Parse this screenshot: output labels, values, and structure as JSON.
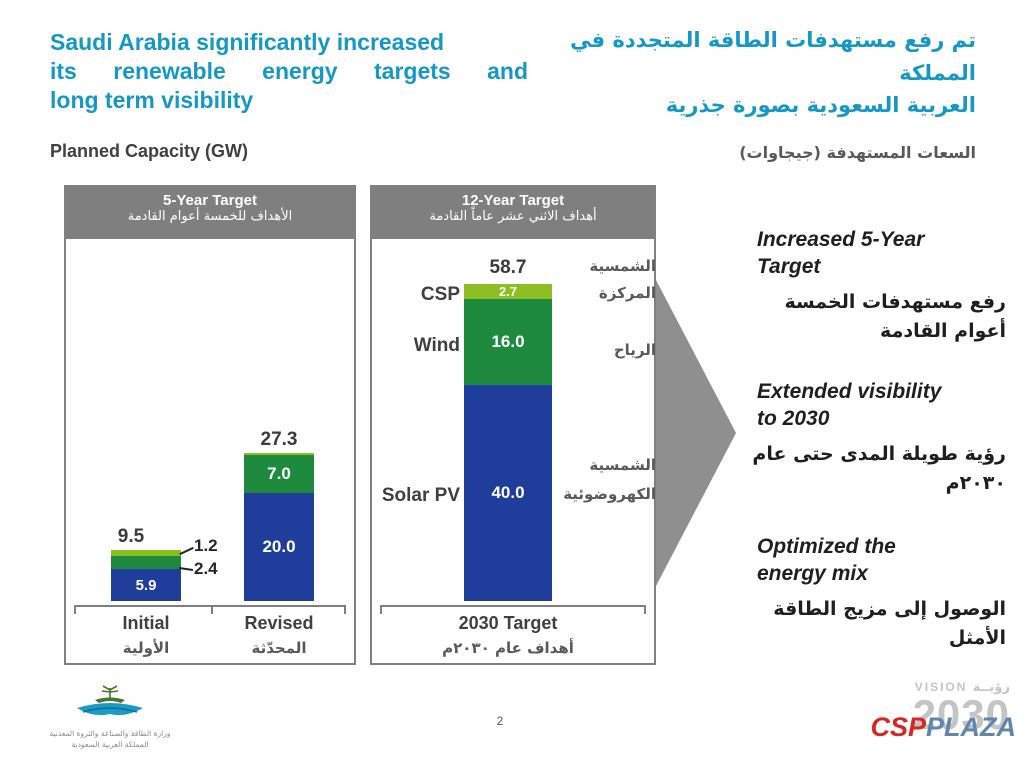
{
  "slide": {
    "title_en_lines": [
      "Saudi Arabia significantly increased",
      "its renewable energy targets and",
      "long term visibility"
    ],
    "title_ar_lines": [
      "تم رفع مستهدفات الطاقة المتجددة في المملكة",
      "العربية السعودية بصورة جذرية"
    ],
    "subtitle_en": "Planned Capacity (GW)",
    "subtitle_ar": "السعات المستهدفة (جيجاوات)"
  },
  "colors": {
    "accent_teal": "#1598c5",
    "solar_pv_blue": "#1f3d9b",
    "wind_green": "#1e8a3e",
    "csp_green": "#8cbf22",
    "panel_gray": "#7f7f7f",
    "arrow_gray": "#8f8f8f"
  },
  "chart_data": [
    {
      "type": "bar",
      "stacked": true,
      "title": "5-Year Target",
      "title_ar": "الأهداف للخمسة أعوام القادمة",
      "categories": [
        "Initial",
        "Revised"
      ],
      "categories_ar": [
        "الأولية",
        "المحدّثة"
      ],
      "series": [
        {
          "name": "Solar PV",
          "color": "#1f3d9b",
          "values": [
            5.9,
            20.0
          ],
          "labels": [
            "5.9",
            "20.0"
          ]
        },
        {
          "name": "Wind",
          "color": "#1e8a3e",
          "values": [
            2.4,
            7.0
          ],
          "labels": [
            "2.4",
            "7.0"
          ]
        },
        {
          "name": "CSP",
          "color": "#8cbf22",
          "values": [
            1.2,
            0.3
          ],
          "labels": [
            "1.2",
            ""
          ]
        }
      ],
      "totals": [
        9.5,
        27.3
      ],
      "total_labels": [
        "9.5",
        "27.3"
      ],
      "ylabel": "GW",
      "ylim": [
        0,
        60
      ],
      "grid": false,
      "legend_position": "none"
    },
    {
      "type": "bar",
      "stacked": true,
      "title": "12-Year Target",
      "title_ar": "أهداف الاثني عشر عاماً القادمة",
      "categories": [
        "2030 Target"
      ],
      "categories_ar": [
        "أهداف عام ٢٠٣٠م"
      ],
      "series": [
        {
          "name": "Solar PV",
          "name_ar": "الشمسية الكهروضوئية",
          "color": "#1f3d9b",
          "values": [
            40.0
          ],
          "labels": [
            "40.0"
          ]
        },
        {
          "name": "Wind",
          "name_ar": "الرياح",
          "color": "#1e8a3e",
          "values": [
            16.0
          ],
          "labels": [
            "16.0"
          ]
        },
        {
          "name": "CSP",
          "name_ar": "الشمسية المركزة",
          "color": "#8cbf22",
          "values": [
            2.7
          ],
          "labels": [
            "2.7"
          ]
        }
      ],
      "totals": [
        58.7
      ],
      "total_labels": [
        "58.7"
      ],
      "ylabel": "GW",
      "ylim": [
        0,
        60
      ],
      "grid": false,
      "legend_position": "none"
    }
  ],
  "notes": [
    {
      "en": "Increased 5-Year Target",
      "ar": "رفع مستهدفات الخمسة أعوام القادمة"
    },
    {
      "en": "Extended visibility to 2030",
      "ar": "رؤية طويلة المدى حتى عام ٢٠٣٠م"
    },
    {
      "en": "Optimized the energy mix",
      "ar": "الوصول إلى مزيج الطاقة الأمثل"
    }
  ],
  "footer": {
    "page": "2",
    "ministry_line1": "وزارة الطاقة والصناعة والثروة المعدنية",
    "ministry_line2": "المملكة العربية السعودية",
    "vision_en": "VISION",
    "vision_ar": "رؤيــة",
    "vision_year": "2030",
    "watermark_csp": "CSP",
    "watermark_plaza": "PLAZA"
  }
}
